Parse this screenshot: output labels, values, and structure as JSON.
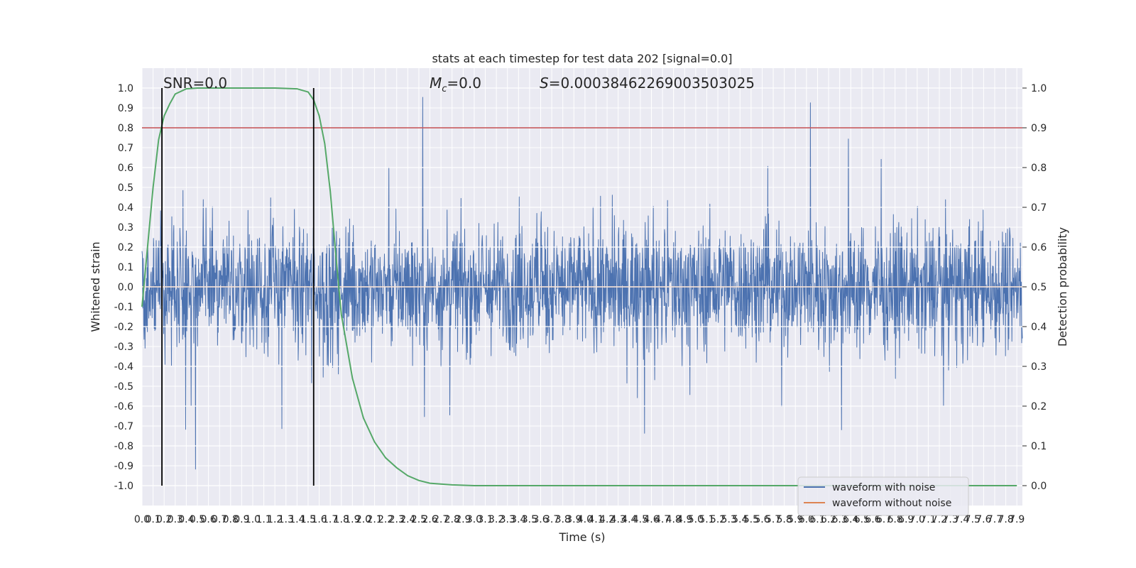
{
  "chart_data": {
    "type": "line",
    "title": "stats at each timestep for test data 202 [signal=0.0]",
    "xlabel": "Time (s)",
    "ylabel": "Whitened strain",
    "y2label": "Detection probability",
    "xlim": [
      0.0,
      7.95
    ],
    "ylim": [
      -1.1,
      1.1
    ],
    "y2lim": [
      -0.05,
      1.05
    ],
    "x_ticks": [
      "0.0",
      "0.1",
      "0.2",
      "0.3",
      "0.4",
      "0.5",
      "0.6",
      "0.7",
      "0.8",
      "0.9",
      "1.0",
      "1.1",
      "1.2",
      "1.3",
      "1.4",
      "1.5",
      "1.6",
      "1.7",
      "1.8",
      "1.9",
      "2.0",
      "2.1",
      "2.2",
      "2.3",
      "2.4",
      "2.5",
      "2.6",
      "2.7",
      "2.8",
      "2.9",
      "3.0",
      "3.1",
      "3.2",
      "3.3",
      "3.4",
      "3.5",
      "3.6",
      "3.7",
      "3.8",
      "3.9",
      "4.0",
      "4.1",
      "4.2",
      "4.3",
      "4.4",
      "4.5",
      "4.6",
      "4.7",
      "4.8",
      "4.9",
      "5.0",
      "5.1",
      "5.2",
      "5.3",
      "5.4",
      "5.5",
      "5.6",
      "5.7",
      "5.8",
      "5.9",
      "6.0",
      "6.1",
      "6.2",
      "6.3",
      "6.4",
      "6.5",
      "6.6",
      "6.7",
      "6.8",
      "6.9",
      "7.0",
      "7.1",
      "7.2",
      "7.3",
      "7.4",
      "7.5",
      "7.6",
      "7.7",
      "7.8",
      "7.9"
    ],
    "y_ticks": [
      "1.0",
      "0.9",
      "0.8",
      "0.7",
      "0.6",
      "0.5",
      "0.4",
      "0.3",
      "0.2",
      "0.1",
      "0.0",
      "-0.1",
      "-0.2",
      "-0.3",
      "-0.4",
      "-0.5",
      "-0.6",
      "-0.7",
      "-0.8",
      "-0.9",
      "-1.0"
    ],
    "y2_ticks": [
      "1.0",
      "0.9",
      "0.8",
      "0.7",
      "0.6",
      "0.5",
      "0.4",
      "0.3",
      "0.2",
      "0.1",
      "0.0"
    ],
    "annotations": {
      "snr": "SNR=0.0",
      "mc_symbol": "M",
      "mc_sub": "c",
      "mc_value": "=0.0",
      "s_symbol": "S",
      "s_value": "=0.00038462269003503025"
    },
    "vlines_x": [
      0.18,
      1.55
    ],
    "threshold_prob": 0.9,
    "series": [
      {
        "name": "waveform with noise",
        "color": "#4c72b0",
        "style": "noise, amplitude approx ±0.35 with peaks to ±0.9"
      },
      {
        "name": "waveform without noise",
        "color": "#dd8452",
        "values": "constant 0.0"
      },
      {
        "name": "",
        "color": "#55a868",
        "axis": "y2",
        "x": [
          0.0,
          0.1,
          0.15,
          0.2,
          0.25,
          0.3,
          0.4,
          0.5,
          0.8,
          1.2,
          1.4,
          1.5,
          1.55,
          1.6,
          1.65,
          1.7,
          1.75,
          1.8,
          1.9,
          2.0,
          2.1,
          2.2,
          2.3,
          2.4,
          2.5,
          2.6,
          2.8,
          3.0,
          4.0,
          7.9
        ],
        "values": [
          0.45,
          0.75,
          0.87,
          0.93,
          0.96,
          0.985,
          0.998,
          1.0,
          1.0,
          1.0,
          0.998,
          0.99,
          0.97,
          0.93,
          0.86,
          0.74,
          0.58,
          0.43,
          0.27,
          0.17,
          0.11,
          0.07,
          0.045,
          0.025,
          0.013,
          0.006,
          0.002,
          0.0,
          0.0,
          0.0
        ]
      }
    ],
    "legend": {
      "placement": "lower-right",
      "entries": [
        "waveform with noise",
        "waveform without noise"
      ]
    },
    "grid": true,
    "colors": {
      "background": "#eaeaf2",
      "grid": "#ffffff",
      "threshold": "#c44e52",
      "vline": "#000000"
    }
  }
}
